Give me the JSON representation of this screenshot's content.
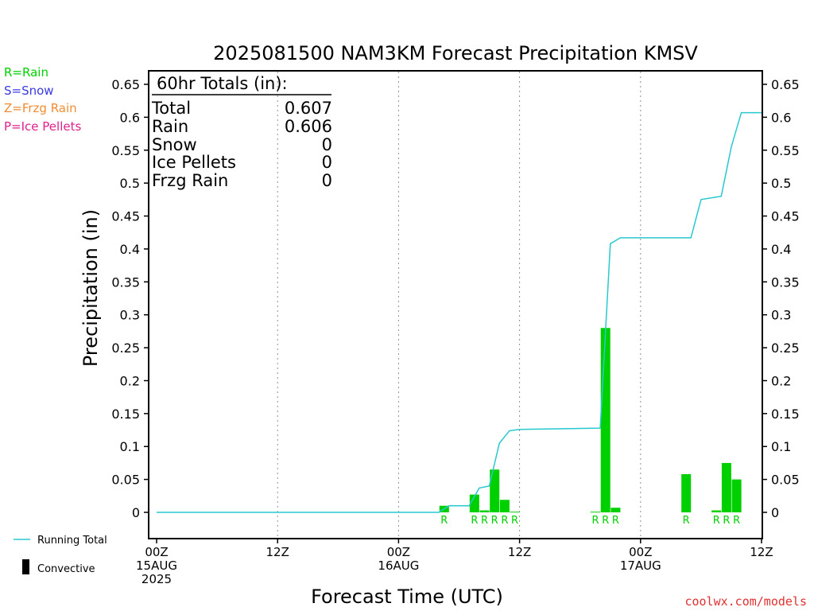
{
  "title": "2025081500 NAM3KM Forecast Precipitation KMSV",
  "colors": {
    "rain": "#00d000",
    "snow": "#3a3ae0",
    "frzg_rain": "#f08c32",
    "ice_pellets": "#e0208c",
    "running_total": "#28c8d0",
    "credit": "#e03030"
  },
  "legend": [
    {
      "text": "R=Rain",
      "color_key": "rain"
    },
    {
      "text": "S=Snow",
      "color_key": "snow"
    },
    {
      "text": "Z=Frzg Rain",
      "color_key": "frzg_rain"
    },
    {
      "text": "P=Ice Pellets",
      "color_key": "ice_pellets"
    }
  ],
  "key": {
    "running_total": "Running Total",
    "convective": "Convective"
  },
  "totals_box": {
    "header": "60hr Totals (in):",
    "rows": [
      {
        "label": "Total",
        "value": "0.607"
      },
      {
        "label": "Rain",
        "value": "0.606"
      },
      {
        "label": "Snow",
        "value": "0"
      },
      {
        "label": "Ice Pellets",
        "value": "0"
      },
      {
        "label": "Frzg Rain",
        "value": "0"
      }
    ]
  },
  "credit": "coolwx.com/models",
  "chart_data": {
    "type": "bar",
    "title": "2025081500 NAM3KM Forecast Precipitation KMSV",
    "xlabel": "Forecast Time (UTC)",
    "ylabel": "Precipitation (in)",
    "ylim": [
      0,
      0.65
    ],
    "xlim_hours": [
      0,
      60
    ],
    "y_ticks": [
      "0",
      "0.05",
      "0.1",
      "0.15",
      "0.2",
      "0.25",
      "0.3",
      "0.35",
      "0.4",
      "0.45",
      "0.5",
      "0.55",
      "0.6",
      "0.65"
    ],
    "x_ticks": [
      {
        "hour": 0,
        "lines": [
          "00Z",
          "15AUG",
          "2025"
        ]
      },
      {
        "hour": 12,
        "lines": [
          "12Z"
        ]
      },
      {
        "hour": 24,
        "lines": [
          "00Z",
          "16AUG"
        ]
      },
      {
        "hour": 36,
        "lines": [
          "12Z"
        ]
      },
      {
        "hour": 48,
        "lines": [
          "00Z",
          "17AUG"
        ]
      },
      {
        "hour": 60,
        "lines": [
          "12Z"
        ]
      }
    ],
    "grid": "vertical dotted at 12Z/00Z",
    "bar_series": {
      "name": "Hourly precipitation",
      "hours": [
        29,
        32,
        33,
        34,
        35,
        36,
        44,
        45,
        46,
        53,
        56,
        57,
        58
      ],
      "values": [
        0.01,
        0.027,
        0.003,
        0.065,
        0.019,
        0.001,
        0.001,
        0.28,
        0.007,
        0.058,
        0.003,
        0.075,
        0.05
      ],
      "ptype_labels": [
        "R",
        "R",
        "R",
        "R",
        "R",
        "R",
        "R",
        "R",
        "R",
        "R",
        "R",
        "R",
        "R"
      ]
    },
    "line_series": {
      "name": "Running Total",
      "hours": [
        0,
        28,
        29,
        31,
        32,
        33,
        34,
        35,
        36,
        44,
        45,
        46,
        53,
        54,
        56,
        57,
        58,
        59,
        60
      ],
      "values": [
        0,
        0,
        0.01,
        0.01,
        0.037,
        0.04,
        0.105,
        0.124,
        0.126,
        0.128,
        0.408,
        0.417,
        0.417,
        0.475,
        0.48,
        0.555,
        0.607,
        0.607,
        0.607
      ]
    }
  }
}
